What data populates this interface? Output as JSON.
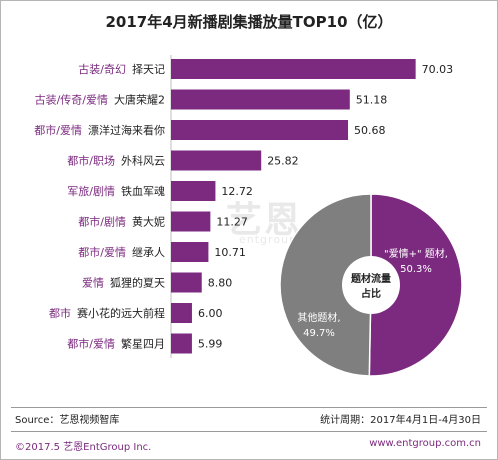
{
  "title": "2017年4月新播剧集播放量TOP10（亿）",
  "watermark": {
    "text": "艺恩",
    "sub": "entgroup"
  },
  "colors": {
    "bar": "#7b2a7f",
    "genre_text": "#7b2a7f",
    "pie_ai_qing": "#7b2a7f",
    "pie_other": "#7f7f7f",
    "pie_center": "#ffffff"
  },
  "chart_data": [
    {
      "type": "bar",
      "orientation": "horizontal",
      "categories": [
        "择天记",
        "大唐荣耀2",
        "漂洋过海来看你",
        "外科风云",
        "铁血军魂",
        "黄大妮",
        "继承人",
        "狐狸的夏天",
        "赛小花的远大前程",
        "繁星四月"
      ],
      "genres": [
        "古装/奇幻",
        "古装/传奇/爱情",
        "都市/爱情",
        "都市/职场",
        "军旅/剧情",
        "都市/剧情",
        "都市/爱情",
        "爱情",
        "都市",
        "都市/爱情"
      ],
      "values": [
        70.03,
        51.18,
        50.68,
        25.82,
        12.72,
        11.27,
        10.71,
        8.8,
        6.0,
        5.99
      ],
      "value_labels": [
        "70.03",
        "51.18",
        "50.68",
        "25.82",
        "12.72",
        "11.27",
        "10.71",
        "8.80",
        "6.00",
        "5.99"
      ],
      "xlim": [
        0,
        75
      ]
    },
    {
      "type": "pie",
      "center_label_line1": "题材流量",
      "center_label_line2": "占比",
      "slices": [
        {
          "name": "\"爱情+\" 题材,",
          "percent_label": "50.3%",
          "value": 50.3
        },
        {
          "name": "其他题材,",
          "percent_label": "49.7%",
          "value": 49.7
        }
      ]
    }
  ],
  "footer": {
    "source": "Source：艺恩视频智库",
    "period": "统计周期：2017年4月1日-4月30日",
    "copyright": "©2017.5  艺恩EntGroup Inc.",
    "website": "www.entgroup.com.cn"
  }
}
